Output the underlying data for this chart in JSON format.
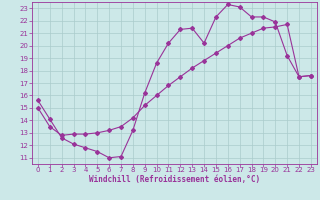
{
  "xlabel": "Windchill (Refroidissement éolien,°C)",
  "bg_color": "#cce8e8",
  "line_color": "#993399",
  "grid_color": "#aacccc",
  "line1_x": [
    0,
    1,
    2,
    3,
    4,
    5,
    6,
    7,
    8,
    9,
    10,
    11,
    12,
    13,
    14,
    15,
    16,
    17,
    18,
    19,
    20,
    21,
    22,
    23
  ],
  "line1_y": [
    15.6,
    14.1,
    12.6,
    12.1,
    11.8,
    11.5,
    11.0,
    11.1,
    13.2,
    16.2,
    18.6,
    20.2,
    21.3,
    21.4,
    20.2,
    22.3,
    23.3,
    23.1,
    22.3,
    22.3,
    21.9,
    19.2,
    17.5,
    17.6
  ],
  "line2_x": [
    0,
    1,
    2,
    3,
    4,
    5,
    6,
    7,
    8,
    9,
    10,
    11,
    12,
    13,
    14,
    15,
    16,
    17,
    18,
    19,
    20,
    21,
    22,
    23
  ],
  "line2_y": [
    15.0,
    13.5,
    12.8,
    12.9,
    12.9,
    13.0,
    13.2,
    13.5,
    14.2,
    15.2,
    16.0,
    16.8,
    17.5,
    18.2,
    18.8,
    19.4,
    20.0,
    20.6,
    21.0,
    21.4,
    21.5,
    21.7,
    17.5,
    17.6
  ],
  "xlim": [
    -0.5,
    23.5
  ],
  "ylim": [
    10.5,
    23.5
  ],
  "xticks": [
    0,
    1,
    2,
    3,
    4,
    5,
    6,
    7,
    8,
    9,
    10,
    11,
    12,
    13,
    14,
    15,
    16,
    17,
    18,
    19,
    20,
    21,
    22,
    23
  ],
  "yticks": [
    11,
    12,
    13,
    14,
    15,
    16,
    17,
    18,
    19,
    20,
    21,
    22,
    23
  ]
}
